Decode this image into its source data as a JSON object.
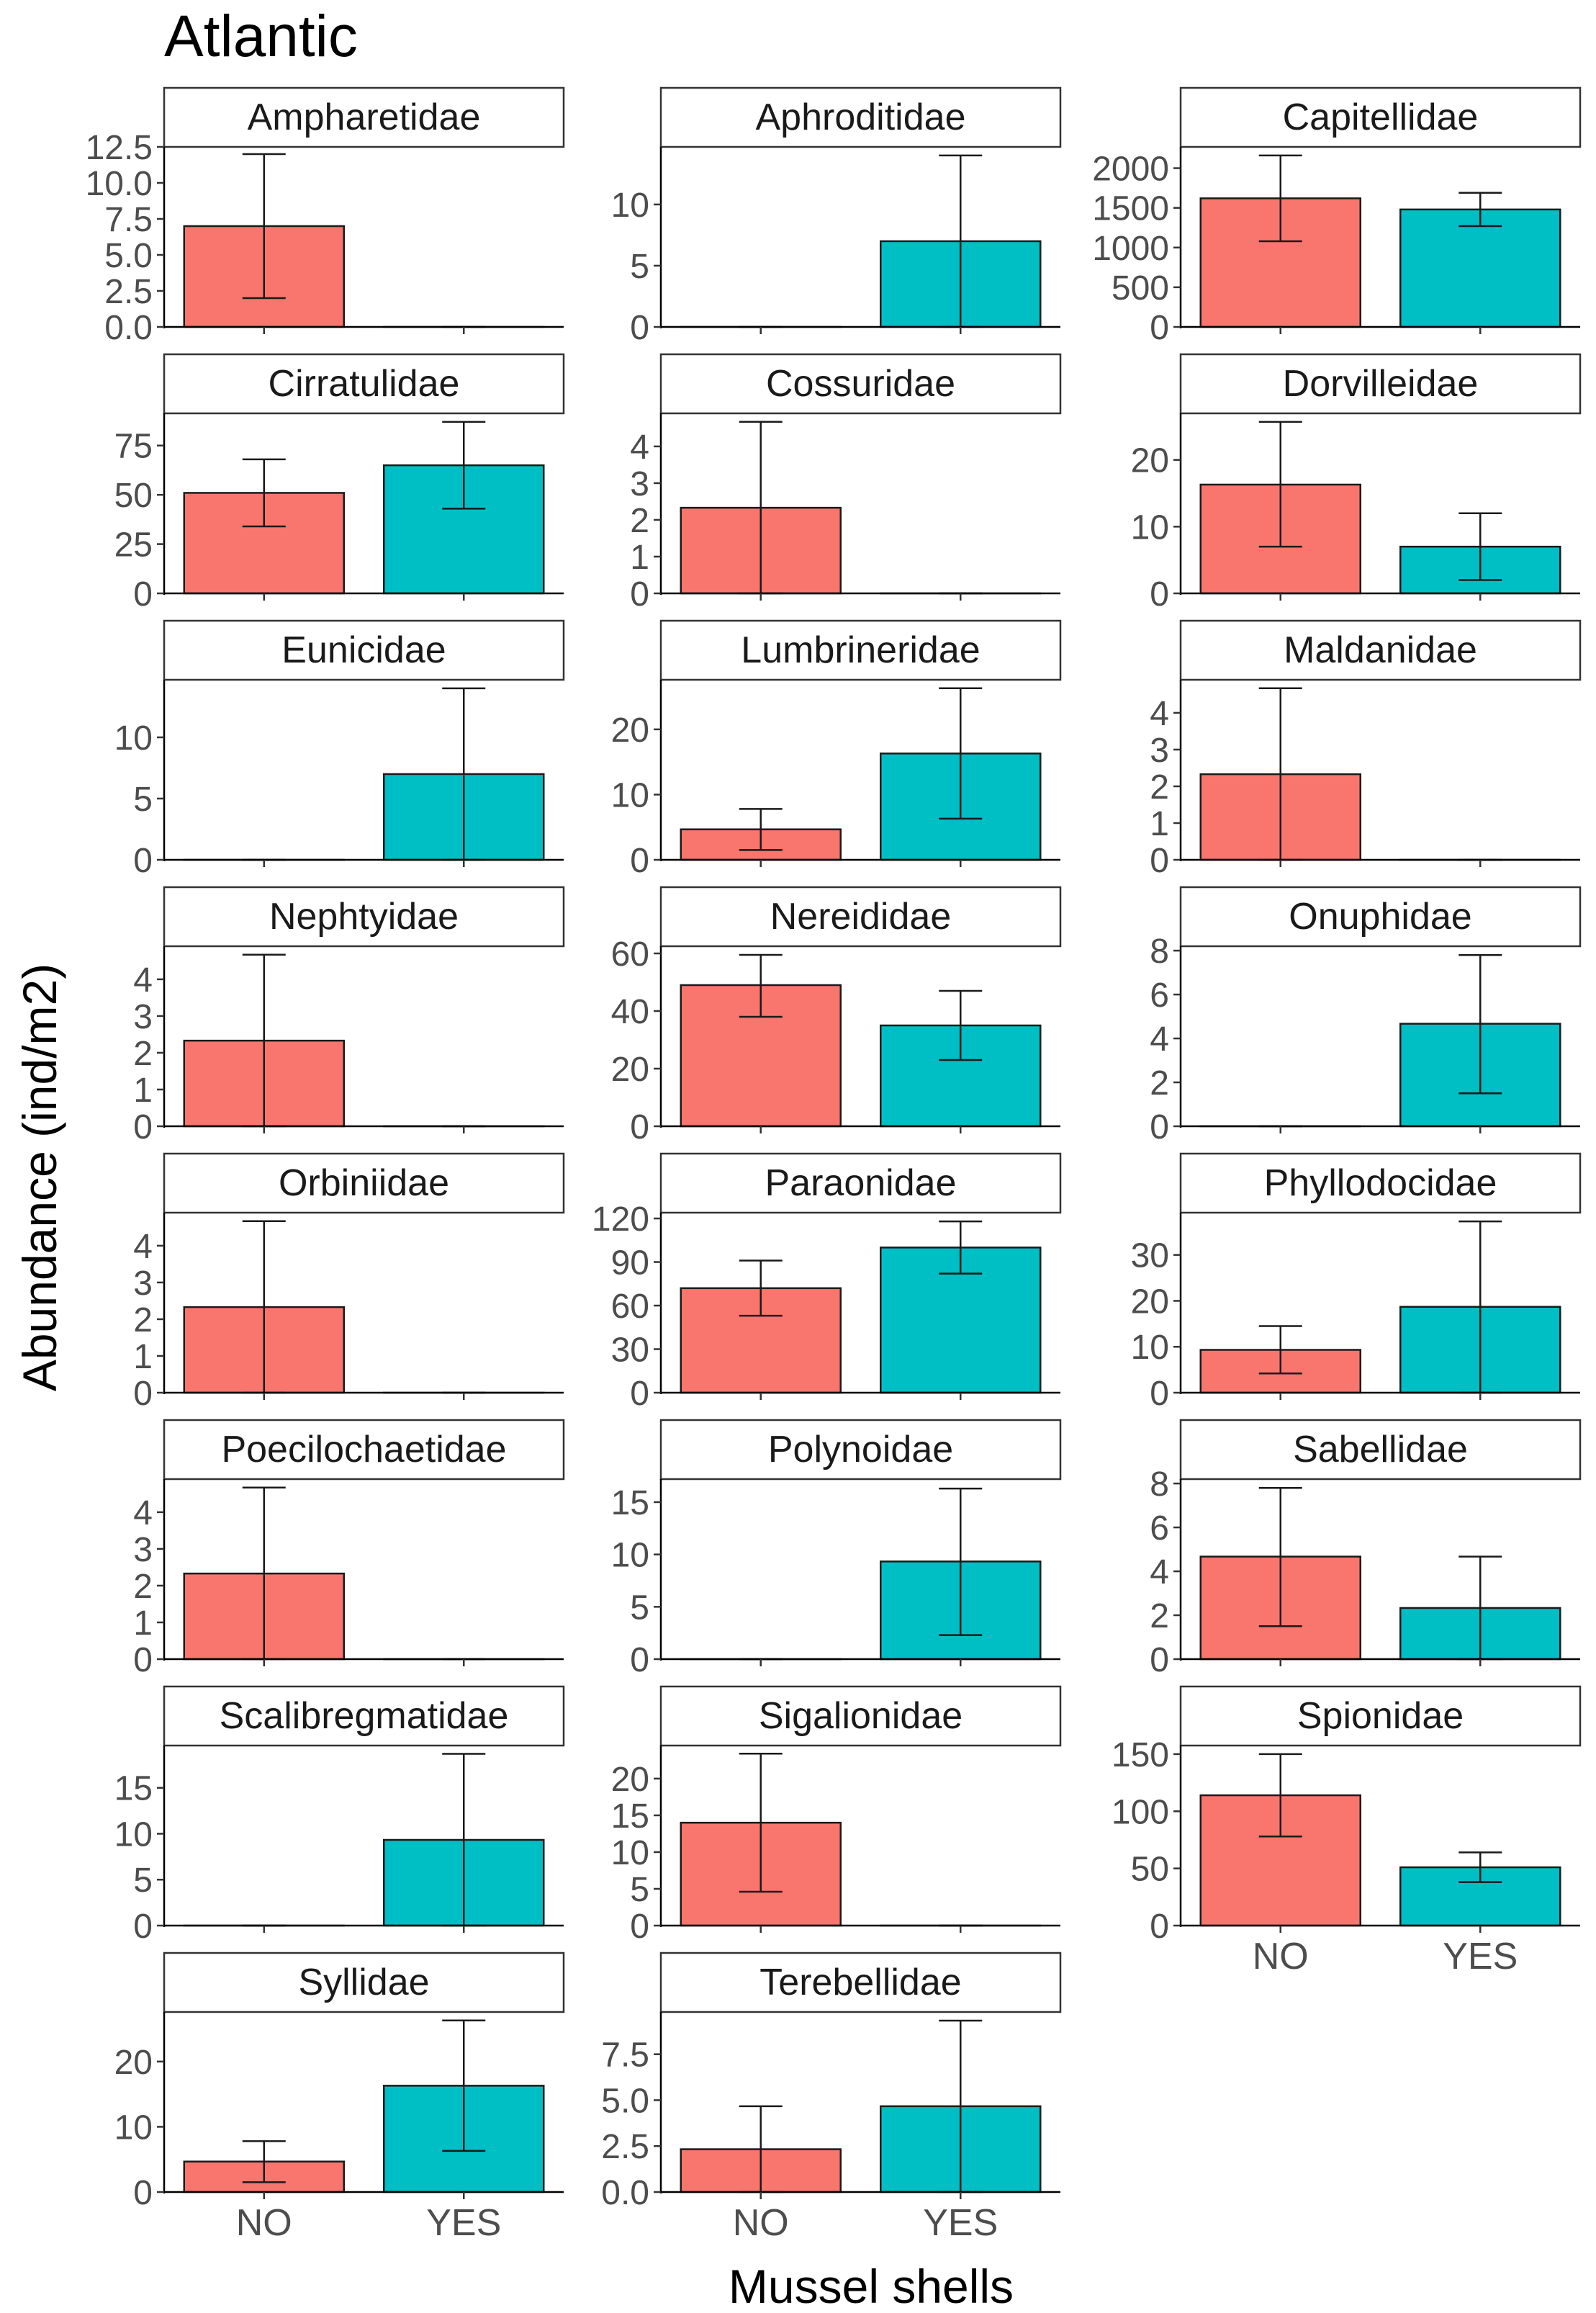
{
  "chart_data": {
    "type": "bar",
    "title": "Atlantic",
    "xlabel": "Mussel shells",
    "ylabel": "Abundance (ind/m2)",
    "categories": [
      "NO",
      "YES"
    ],
    "colors": {
      "NO": "#F8766D",
      "YES": "#00BFC4"
    },
    "panels": [
      {
        "name": "Ampharetidae",
        "values": [
          7,
          0
        ],
        "error": [
          [
            2,
            12
          ],
          [
            0,
            0
          ]
        ],
        "ylim": [
          0,
          12.5
        ],
        "ticks": [
          "0.0",
          "2.5",
          "5.0",
          "7.5",
          "10.0",
          "12.5"
        ]
      },
      {
        "name": "Aphroditidae",
        "values": [
          0,
          7
        ],
        "error": [
          [
            0,
            0
          ],
          [
            0,
            14
          ]
        ],
        "ylim": [
          0,
          14.7
        ],
        "ticks": [
          "0",
          "5",
          "10"
        ]
      },
      {
        "name": "Capitellidae",
        "values": [
          1620,
          1480
        ],
        "error": [
          [
            1080,
            2160
          ],
          [
            1270,
            1690
          ]
        ],
        "ylim": [
          0,
          2268
        ],
        "ticks": [
          "0",
          "500",
          "1000",
          "1500",
          "2000"
        ]
      },
      {
        "name": "Cirratulidae",
        "values": [
          51,
          65
        ],
        "error": [
          [
            34,
            68
          ],
          [
            43,
            87
          ]
        ],
        "ylim": [
          0,
          91.35
        ],
        "ticks": [
          "0",
          "25",
          "50",
          "75"
        ]
      },
      {
        "name": "Cossuridae",
        "values": [
          2.33,
          0
        ],
        "error": [
          [
            0,
            4.67
          ],
          [
            0,
            0
          ]
        ],
        "ylim": [
          0,
          4.9
        ],
        "ticks": [
          "0",
          "1",
          "2",
          "3",
          "4"
        ]
      },
      {
        "name": "Dorvilleidae",
        "values": [
          16.3,
          7
        ],
        "error": [
          [
            7,
            25.7
          ],
          [
            2,
            12
          ]
        ],
        "ylim": [
          0,
          26.98
        ],
        "ticks": [
          "0",
          "10",
          "20"
        ]
      },
      {
        "name": "Eunicidae",
        "values": [
          0,
          7
        ],
        "error": [
          [
            0,
            0
          ],
          [
            0,
            14
          ]
        ],
        "ylim": [
          0,
          14.7
        ],
        "ticks": [
          "0",
          "5",
          "10"
        ]
      },
      {
        "name": "Lumbrineridae",
        "values": [
          4.67,
          16.3
        ],
        "error": [
          [
            1.5,
            7.8
          ],
          [
            6.3,
            26.3
          ]
        ],
        "ylim": [
          0,
          27.6
        ],
        "ticks": [
          "0",
          "10",
          "20"
        ]
      },
      {
        "name": "Maldanidae",
        "values": [
          2.33,
          0
        ],
        "error": [
          [
            0,
            4.67
          ],
          [
            0,
            0
          ]
        ],
        "ylim": [
          0,
          4.9
        ],
        "ticks": [
          "0",
          "1",
          "2",
          "3",
          "4"
        ]
      },
      {
        "name": "Nephtyidae",
        "values": [
          2.33,
          0
        ],
        "error": [
          [
            0,
            4.67
          ],
          [
            0,
            0
          ]
        ],
        "ylim": [
          0,
          4.9
        ],
        "ticks": [
          "0",
          "1",
          "2",
          "3",
          "4"
        ]
      },
      {
        "name": "Nereididae",
        "values": [
          49,
          35
        ],
        "error": [
          [
            38,
            59.5
          ],
          [
            23,
            47
          ]
        ],
        "ylim": [
          0,
          62.5
        ],
        "ticks": [
          "0",
          "20",
          "40",
          "60"
        ]
      },
      {
        "name": "Onuphidae",
        "values": [
          0,
          4.67
        ],
        "error": [
          [
            0,
            0
          ],
          [
            1.5,
            7.8
          ]
        ],
        "ylim": [
          0,
          8.2
        ],
        "ticks": [
          "0",
          "2",
          "4",
          "6",
          "8"
        ]
      },
      {
        "name": "Orbiniidae",
        "values": [
          2.33,
          0
        ],
        "error": [
          [
            0,
            4.67
          ],
          [
            0,
            0
          ]
        ],
        "ylim": [
          0,
          4.9
        ],
        "ticks": [
          "0",
          "1",
          "2",
          "3",
          "4"
        ]
      },
      {
        "name": "Paraonidae",
        "values": [
          72,
          100
        ],
        "error": [
          [
            53,
            91
          ],
          [
            82,
            118
          ]
        ],
        "ylim": [
          0,
          124
        ],
        "ticks": [
          "0",
          "30",
          "60",
          "90",
          "120"
        ]
      },
      {
        "name": "Phyllodocidae",
        "values": [
          9.33,
          18.7
        ],
        "error": [
          [
            4.2,
            14.5
          ],
          [
            0,
            37.3
          ]
        ],
        "ylim": [
          0,
          39.2
        ],
        "ticks": [
          "0",
          "10",
          "20",
          "30"
        ]
      },
      {
        "name": "Poecilochaetidae",
        "values": [
          2.33,
          0
        ],
        "error": [
          [
            0,
            4.67
          ],
          [
            0,
            0
          ]
        ],
        "ylim": [
          0,
          4.9
        ],
        "ticks": [
          "0",
          "1",
          "2",
          "3",
          "4"
        ]
      },
      {
        "name": "Polynoidae",
        "values": [
          0,
          9.33
        ],
        "error": [
          [
            0,
            0
          ],
          [
            2.3,
            16.3
          ]
        ],
        "ylim": [
          0,
          17.2
        ],
        "ticks": [
          "0",
          "5",
          "10",
          "15"
        ]
      },
      {
        "name": "Sabellidae",
        "values": [
          4.67,
          2.33
        ],
        "error": [
          [
            1.5,
            7.8
          ],
          [
            0,
            4.67
          ]
        ],
        "ylim": [
          0,
          8.2
        ],
        "ticks": [
          "0",
          "2",
          "4",
          "6",
          "8"
        ]
      },
      {
        "name": "Scalibregmatidae",
        "values": [
          0,
          9.33
        ],
        "error": [
          [
            0,
            0
          ],
          [
            0,
            18.7
          ]
        ],
        "ylim": [
          0,
          19.6
        ],
        "ticks": [
          "0",
          "5",
          "10",
          "15"
        ]
      },
      {
        "name": "Sigalionidae",
        "values": [
          14,
          0
        ],
        "error": [
          [
            4.6,
            23.4
          ],
          [
            0,
            0
          ]
        ],
        "ylim": [
          0,
          24.5
        ],
        "ticks": [
          "0",
          "5",
          "10",
          "15",
          "20"
        ]
      },
      {
        "name": "Spionidae",
        "values": [
          114,
          51
        ],
        "error": [
          [
            78,
            150
          ],
          [
            38,
            64
          ]
        ],
        "ylim": [
          0,
          157.5
        ],
        "ticks": [
          "0",
          "50",
          "100",
          "150"
        ]
      },
      {
        "name": "Syllidae",
        "values": [
          4.67,
          16.3
        ],
        "error": [
          [
            1.5,
            7.8
          ],
          [
            6.3,
            26.3
          ]
        ],
        "ylim": [
          0,
          27.6
        ],
        "ticks": [
          "0",
          "10",
          "20"
        ]
      },
      {
        "name": "Terebellidae",
        "values": [
          2.33,
          4.67
        ],
        "error": [
          [
            0,
            4.67
          ],
          [
            0,
            9.33
          ]
        ],
        "ylim": [
          0,
          9.8
        ],
        "ticks": [
          "0.0",
          "2.5",
          "5.0",
          "7.5"
        ]
      }
    ]
  }
}
